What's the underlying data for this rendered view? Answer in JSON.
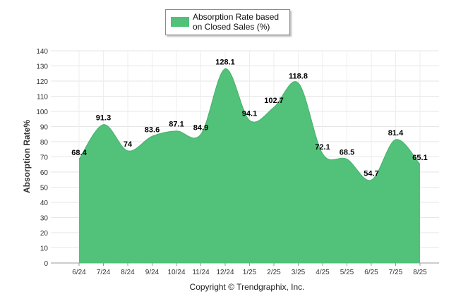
{
  "chart_data": {
    "type": "area",
    "categories": [
      "6/24",
      "7/24",
      "8/24",
      "9/24",
      "10/24",
      "11/24",
      "12/24",
      "1/25",
      "2/25",
      "3/25",
      "4/25",
      "5/25",
      "6/25",
      "7/25",
      "8/25"
    ],
    "series": [
      {
        "name": "Absorption Rate based on Closed Sales (%)",
        "values": [
          68.4,
          91.3,
          74,
          83.6,
          87.1,
          84.9,
          128.1,
          94.1,
          102.7,
          118.8,
          72.1,
          68.5,
          54.7,
          81.4,
          65.1
        ],
        "labels": [
          "68.4",
          "91.3",
          "74",
          "83.6",
          "87.1",
          "84.9",
          "128.1",
          "94.1",
          "102.7",
          "118.8",
          "72.1",
          "68.5",
          "54.7",
          "81.4",
          "65.1"
        ],
        "color": "#52c17a"
      }
    ],
    "ylabel": "Absorption Rate%",
    "xlabel": "",
    "ylim": [
      0,
      140
    ],
    "yticks": [
      0,
      10,
      20,
      30,
      40,
      50,
      60,
      70,
      80,
      90,
      100,
      110,
      120,
      130,
      140
    ],
    "grid": true,
    "legend_position": "top-center"
  },
  "legend": {
    "label": "Absorption Rate based on Closed Sales (%)",
    "color": "#52c17a"
  },
  "footer": "Copyright © Trendgraphix, Inc."
}
